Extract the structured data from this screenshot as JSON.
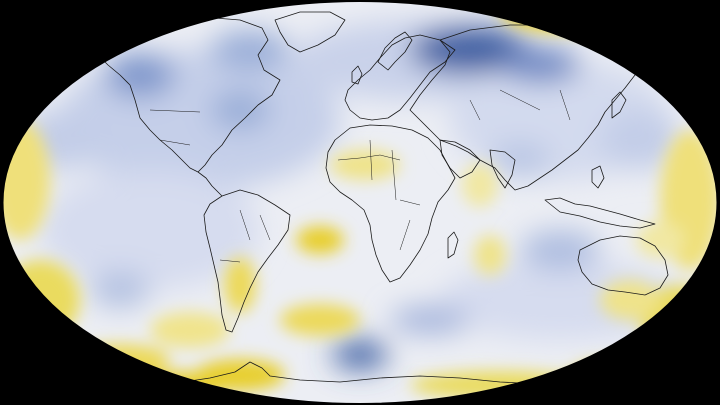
{
  "map": {
    "projection": "robinson",
    "background_color": "#000000",
    "continent_outline_color": "#1a1a1a",
    "color_scale": {
      "cool_strong": "#3c5fa3",
      "cool": "#8ea2d4",
      "neutral": "#f2f3f5",
      "warm": "#f2e27a",
      "warm_strong": "#e8cf2e"
    },
    "anomaly_regions": [
      {
        "name": "siberia",
        "level": "cool_strong"
      },
      {
        "name": "canada",
        "level": "cool"
      },
      {
        "name": "alaska",
        "level": "cool"
      },
      {
        "name": "north-atlantic",
        "level": "cool"
      },
      {
        "name": "south-pacific",
        "level": "cool"
      },
      {
        "name": "west-antarctica",
        "level": "cool_strong"
      },
      {
        "name": "arctic-ocean",
        "level": "warm_strong"
      },
      {
        "name": "sahel",
        "level": "warm"
      },
      {
        "name": "south-atlantic",
        "level": "warm_strong"
      },
      {
        "name": "southern-ocean",
        "level": "warm"
      },
      {
        "name": "antarctic-peninsula",
        "level": "warm_strong"
      },
      {
        "name": "indian-ocean",
        "level": "warm"
      },
      {
        "name": "argentina",
        "level": "warm"
      }
    ]
  }
}
